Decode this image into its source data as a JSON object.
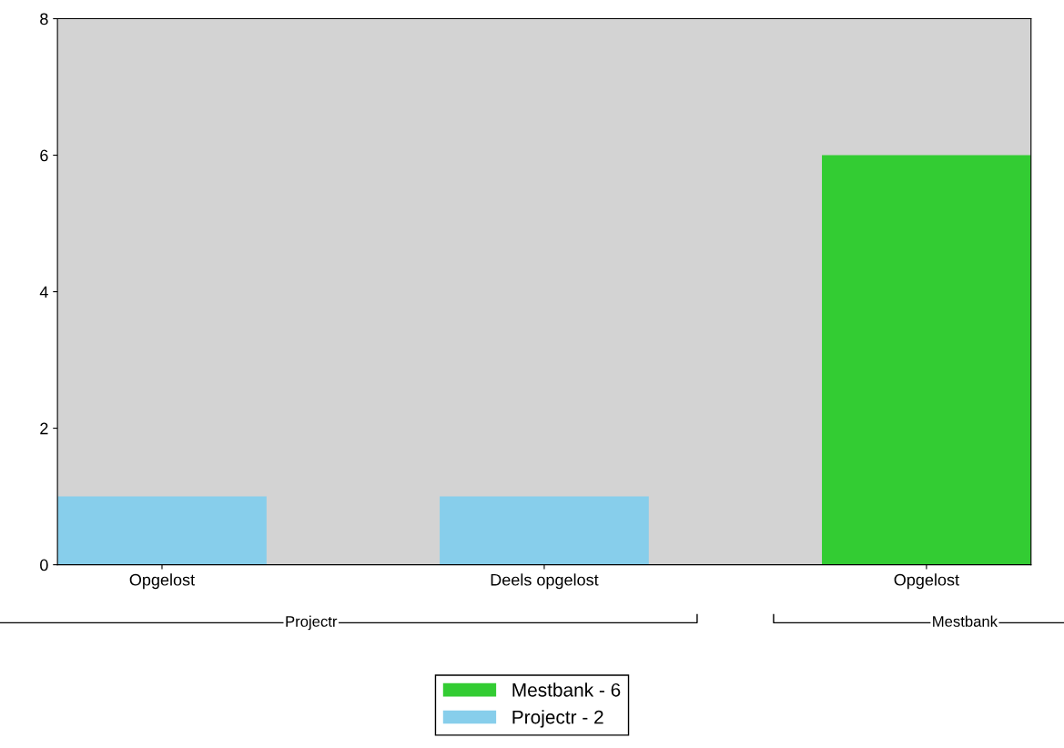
{
  "chart_data": {
    "type": "bar",
    "categories": [
      "Opgelost",
      "Deels opgelost",
      "Opgelost"
    ],
    "series": [
      {
        "name": "Mestbank - 6",
        "color": "#33cc33",
        "values": [
          null,
          null,
          6
        ]
      },
      {
        "name": "Projectr - 2",
        "color": "#87ceeb",
        "values": [
          1,
          1,
          null
        ]
      }
    ],
    "annotations": [
      "Projectr",
      "Mestbank"
    ],
    "ylim": [
      0,
      8
    ],
    "yticks": [
      0,
      2,
      4,
      6,
      8
    ],
    "grid": false,
    "legend": "bottom"
  }
}
